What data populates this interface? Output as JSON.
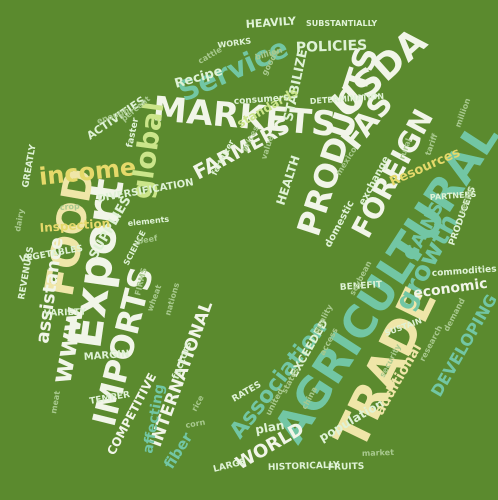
{
  "background_color": "#5b8a2e",
  "palette": [
    "#f1f5e8",
    "#efe6a8",
    "#e5d96a",
    "#b7e3b5",
    "#72c6a4",
    "#cbe58a",
    "#dff2d6",
    "#a8c98e"
  ],
  "words": {
    "trade": "TRADE",
    "agricultural": "AGRICULTURAL",
    "export": "Export",
    "food": "FOOD",
    "imports": "IMPORTS",
    "markets": "MARKETS",
    "products": "PRODUCTS",
    "usda": "USDA",
    "service": "Service",
    "foreign": "FOREIGN",
    "fas": "FAS",
    "income": "income",
    "global": "global",
    "growth": "growth",
    "association": "Association",
    "farmers": "FARMERS",
    "international": "INTERNATIONAL",
    "www": "www",
    "assistance": "assistance",
    "developing": "DEVELOPING",
    "gains": "GAINS",
    "world": "WORLD",
    "economic": "economic",
    "policies": "POLICIES",
    "heavily": "HEAVILY",
    "recipe": "Recipe",
    "stabilize": "STABILIZE",
    "health": "HEALTH",
    "supplies": "SUPPLIES",
    "competitive": "COMPETITIVE",
    "affecting": "affecting",
    "fiber": "fiber",
    "plan": "plan",
    "population": "population",
    "additional": "additional",
    "exceeded": "EXCEEDED",
    "resources": "Resources",
    "inspection": "Inspection",
    "margin": "MARGIN",
    "diversification": "DIVERSIFICATION",
    "activities": "ACTIVITIES",
    "standards": "standards",
    "consumers": "consumers",
    "exchange": "exchange",
    "domestic": "domestic",
    "commodities": "commodities",
    "variety": "VARIETY",
    "benefit": "BENEFIT",
    "rates": "RATES",
    "historically": "HISTORICALLY",
    "fruits": "FRUITS",
    "large": "LARGE",
    "greatly": "GREATLY",
    "vegetables": "VEGETABLES",
    "revenues": "REVENUES",
    "temper": "TEMPER",
    "factors": "factors",
    "works": "WORKS",
    "faster": "faster",
    "partners": "PARTNERS",
    "producers": "PRODUCERS",
    "sustain": "SUSTAIN",
    "science": "SCIENCE",
    "fertilizer": "fertilizer",
    "elements": "elements",
    "substantially": "SUBSTANTIALLY",
    "determination": "DETERMINATION",
    "enough": "enough",
    "cattle": "cattle",
    "goods": "goods",
    "prices": "prices",
    "value": "value",
    "mexico": "mexico",
    "firms": "FIRMS",
    "nations": "nations",
    "beef": "beef",
    "wheat": "wheat",
    "rice": "rice",
    "corn": "corn",
    "soybean": "soybean",
    "quality": "quality",
    "access": "access",
    "rural": "rural",
    "tariff": "tariff",
    "sector": "sector",
    "demand": "demand",
    "research": "research",
    "security": "security",
    "market": "market",
    "china": "china",
    "united": "united",
    "states": "states",
    "crop": "crop",
    "dairy": "dairy",
    "meat": "meat",
    "percent": "percent",
    "billion": "billion",
    "million": "million"
  }
}
